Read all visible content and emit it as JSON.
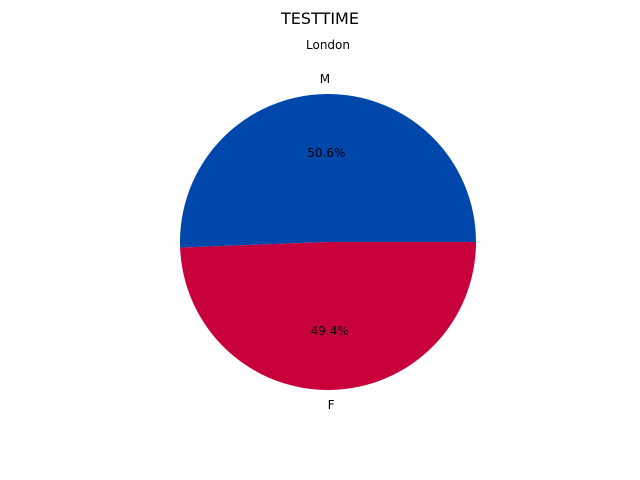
{
  "chart_data": {
    "type": "pie",
    "title": "TESTTIME",
    "subtitle": "London",
    "slices": [
      {
        "label": "M",
        "value": 50.6,
        "pct_label": "50.6%",
        "color": "#0047AB"
      },
      {
        "label": "F",
        "value": 49.4,
        "pct_label": "49.4%",
        "color": "#C8003C"
      }
    ]
  }
}
